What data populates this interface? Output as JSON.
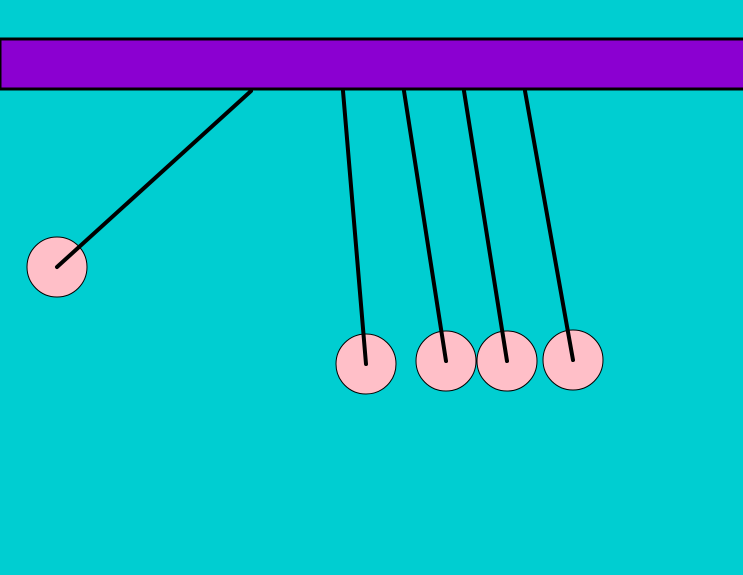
{
  "colors": {
    "background": "#00CED1",
    "frame_bar": "#8B00D1",
    "frame_outline": "#000000",
    "string": "#000000",
    "ball_fill": "#FFBFC8",
    "ball_outline": "#000000"
  },
  "pendulum": {
    "ball_count": 5,
    "swinging_ball": 1
  }
}
